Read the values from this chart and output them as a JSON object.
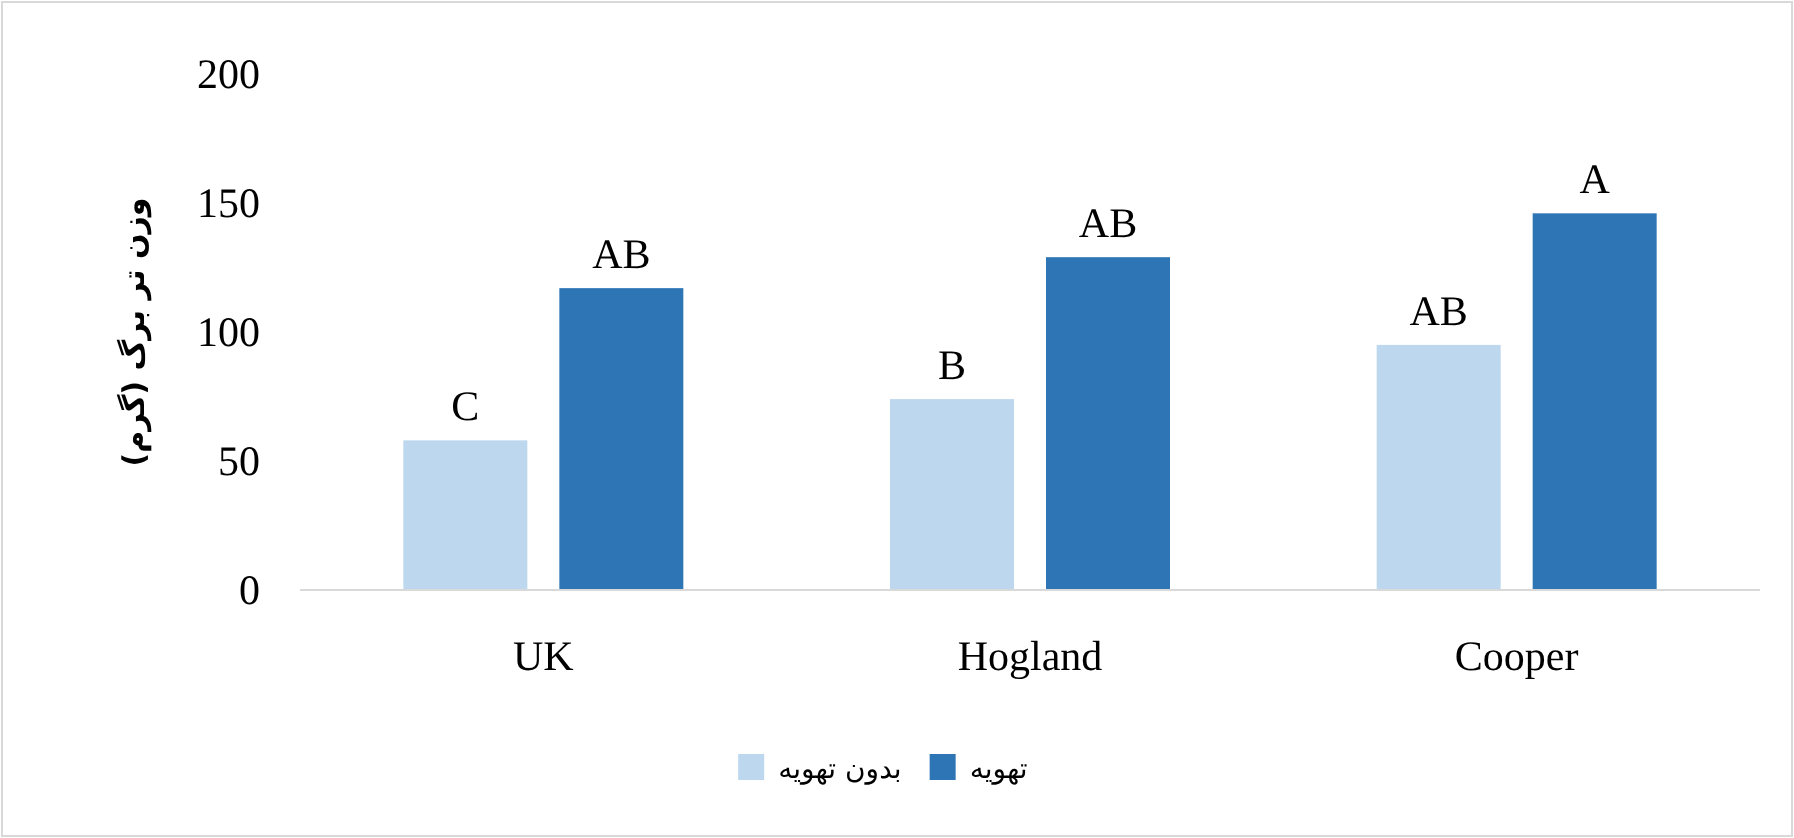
{
  "chart_data": {
    "type": "bar",
    "ylabel": "وزن تر برگ (گرم)",
    "categories": [
      "UK",
      "Hogland",
      "Cooper"
    ],
    "series": [
      {
        "name": "بدون تهویه",
        "color": "#bdd7ee",
        "values": [
          58,
          74,
          95
        ],
        "value_labels": [
          "C",
          "B",
          "AB"
        ]
      },
      {
        "name": "تهویه",
        "color": "#2e75b6",
        "values": [
          117,
          129,
          146
        ],
        "value_labels": [
          "AB",
          "AB",
          "A"
        ]
      }
    ],
    "ylim": [
      0,
      200
    ],
    "yticks": [
      0,
      50,
      100,
      150,
      200
    ],
    "grid": false,
    "legend": "bottom"
  }
}
